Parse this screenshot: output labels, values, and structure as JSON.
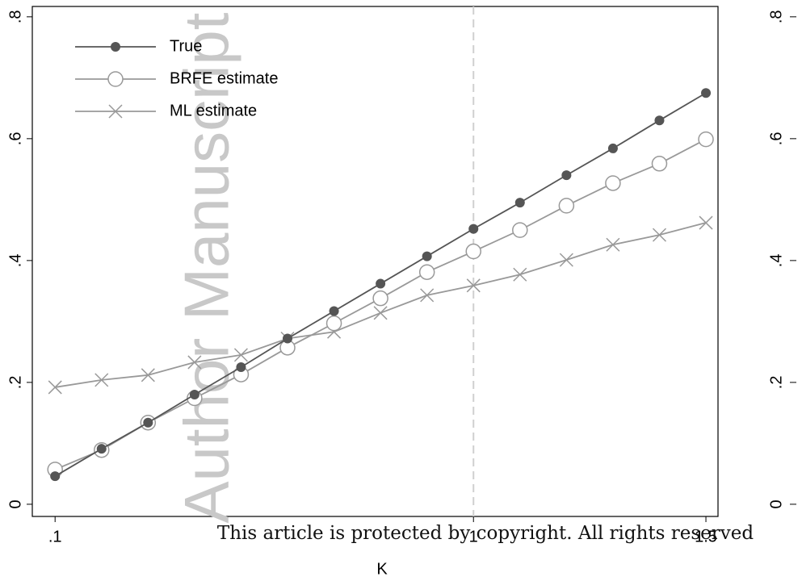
{
  "chart_data": [
    {
      "type": "line",
      "x_label": "K",
      "x": [
        0.1,
        0.2,
        0.3,
        0.4,
        0.5,
        0.6,
        0.7,
        0.8,
        0.9,
        1.0,
        1.1,
        1.2,
        1.3,
        1.4,
        1.5
      ],
      "series": [
        {
          "name": "True",
          "color": "#555555",
          "marker": "filled-circle",
          "values": [
            0.046,
            0.091,
            0.134,
            0.18,
            0.225,
            0.272,
            0.317,
            0.362,
            0.407,
            0.452,
            0.495,
            0.54,
            0.584,
            0.63,
            0.675
          ]
        },
        {
          "name": "BRFE estimate",
          "color": "#999999",
          "marker": "hollow-circle",
          "values": [
            0.057,
            0.089,
            0.134,
            0.174,
            0.213,
            0.257,
            0.297,
            0.338,
            0.381,
            0.415,
            0.45,
            0.49,
            0.527,
            0.559,
            0.599
          ]
        },
        {
          "name": "ML estimate",
          "color": "#999999",
          "marker": "cross",
          "values": [
            0.192,
            0.204,
            0.212,
            0.233,
            0.245,
            0.272,
            0.283,
            0.314,
            0.343,
            0.359,
            0.377,
            0.401,
            0.426,
            0.442,
            0.462
          ]
        }
      ],
      "xlim": [
        0.051,
        1.526
      ],
      "ylim": [
        -0.02,
        0.817
      ],
      "xticks": [
        {
          "value": 0.1,
          "label": ".1"
        },
        1,
        1.5
      ],
      "yticks": [
        0,
        {
          "value": 0.2,
          "label": ".2"
        },
        {
          "value": 0.4,
          "label": ".4"
        },
        {
          "value": 0.6,
          "label": ".6"
        },
        {
          "value": 0.8,
          "label": ".8"
        }
      ],
      "reference_line": 1,
      "legend": "upper-left"
    },
    {
      "type": "axis-only",
      "ylim": [
        -0.02,
        0.817
      ],
      "yticks": [
        0,
        {
          "value": 0.2,
          "label": ".2"
        },
        {
          "value": 0.4,
          "label": ".4"
        },
        {
          "value": 0.6,
          "label": ".6"
        },
        {
          "value": 0.8,
          "label": ".8"
        }
      ]
    }
  ],
  "watermark": "Author Manuscript",
  "footer": "This article is protected by copyright. All rights reserved"
}
